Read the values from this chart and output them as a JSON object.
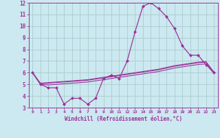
{
  "x": [
    0,
    1,
    2,
    3,
    4,
    5,
    6,
    7,
    8,
    9,
    10,
    11,
    12,
    13,
    14,
    15,
    16,
    17,
    18,
    19,
    20,
    21,
    22,
    23
  ],
  "windchill": [
    6.0,
    5.0,
    4.7,
    4.7,
    3.3,
    3.8,
    3.8,
    3.3,
    3.8,
    5.5,
    5.8,
    5.5,
    7.0,
    9.5,
    11.7,
    12.0,
    11.5,
    10.8,
    9.8,
    8.3,
    7.5,
    7.5,
    6.7,
    6.0
  ],
  "line2": [
    6.0,
    5.1,
    5.15,
    5.2,
    5.25,
    5.3,
    5.35,
    5.4,
    5.5,
    5.6,
    5.7,
    5.8,
    5.9,
    6.0,
    6.1,
    6.2,
    6.3,
    6.45,
    6.6,
    6.7,
    6.8,
    6.9,
    6.95,
    6.05
  ],
  "line3": [
    6.0,
    5.05,
    5.1,
    5.15,
    5.2,
    5.25,
    5.3,
    5.35,
    5.45,
    5.55,
    5.65,
    5.75,
    5.85,
    5.95,
    6.05,
    6.15,
    6.25,
    6.4,
    6.55,
    6.65,
    6.75,
    6.85,
    6.9,
    6.0
  ],
  "line4": [
    6.0,
    5.0,
    4.95,
    5.0,
    5.05,
    5.1,
    5.15,
    5.2,
    5.3,
    5.4,
    5.5,
    5.6,
    5.7,
    5.8,
    5.9,
    6.0,
    6.1,
    6.25,
    6.4,
    6.5,
    6.6,
    6.7,
    6.75,
    5.95
  ],
  "line_color": "#993399",
  "bg_color": "#cce8f0",
  "grid_color": "#aacccc",
  "xlabel": "Windchill (Refroidissement éolien,°C)",
  "ylim": [
    3,
    12
  ],
  "xlim": [
    -0.5,
    23.5
  ],
  "yticks": [
    3,
    4,
    5,
    6,
    7,
    8,
    9,
    10,
    11,
    12
  ],
  "xticks": [
    0,
    1,
    2,
    3,
    4,
    5,
    6,
    7,
    8,
    9,
    10,
    11,
    12,
    13,
    14,
    15,
    16,
    17,
    18,
    19,
    20,
    21,
    22,
    23
  ]
}
